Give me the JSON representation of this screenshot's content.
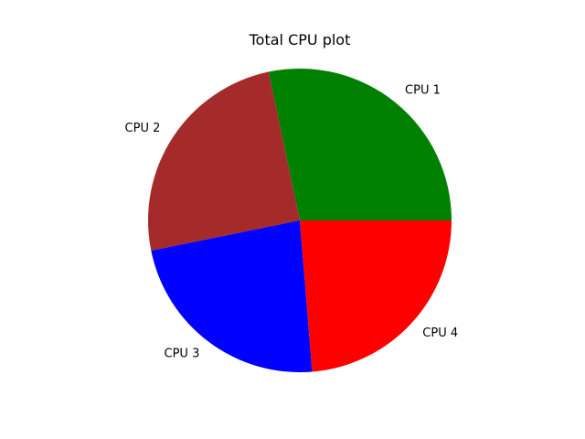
{
  "chart_data": {
    "type": "pie",
    "title": "Total CPU plot",
    "labels": [
      "CPU 1",
      "CPU 2",
      "CPU 3",
      "CPU 4"
    ],
    "values": [
      28.3,
      24.9,
      23.1,
      23.7
    ],
    "colors": [
      "#008000",
      "#a52a2a",
      "#0000ff",
      "#ff0000"
    ],
    "start_angle": 0,
    "direction": "counterclockwise",
    "legend": false
  }
}
